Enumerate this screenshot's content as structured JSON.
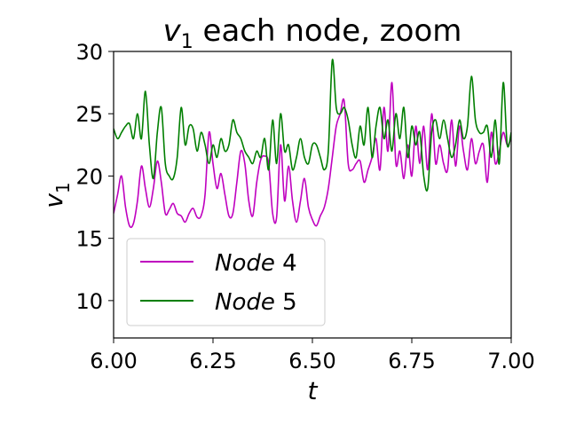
{
  "chart_data": {
    "type": "line",
    "title": {
      "var": "v",
      "sub": "1",
      "rest": " each node, zoom"
    },
    "xlabel": "t",
    "ylabel": {
      "var": "v",
      "sub": "1"
    },
    "xlim": [
      6.0,
      7.0
    ],
    "ylim": [
      7,
      30
    ],
    "xticks": [
      6.0,
      6.25,
      6.5,
      6.75,
      7.0
    ],
    "xtick_labels": [
      "6.00",
      "6.25",
      "6.50",
      "6.75",
      "7.00"
    ],
    "yticks": [
      10,
      15,
      20,
      25,
      30
    ],
    "ytick_labels": [
      "10",
      "15",
      "20",
      "25",
      "30"
    ],
    "grid": false,
    "legend_placement": "lower-left",
    "series": [
      {
        "name": "Node 4",
        "name_italic": "Node",
        "name_plain": " 4",
        "color": "#bf00bf",
        "x": [
          6.0,
          6.01,
          6.02,
          6.03,
          6.04,
          6.05,
          6.06,
          6.07,
          6.08,
          6.09,
          6.1,
          6.11,
          6.12,
          6.13,
          6.14,
          6.15,
          6.16,
          6.17,
          6.18,
          6.19,
          6.2,
          6.21,
          6.22,
          6.23,
          6.24,
          6.25,
          6.26,
          6.27,
          6.28,
          6.29,
          6.3,
          6.31,
          6.32,
          6.33,
          6.34,
          6.35,
          6.36,
          6.37,
          6.38,
          6.39,
          6.4,
          6.41,
          6.42,
          6.43,
          6.44,
          6.45,
          6.46,
          6.47,
          6.48,
          6.49,
          6.5,
          6.51,
          6.52,
          6.53,
          6.54,
          6.55,
          6.56,
          6.57,
          6.58,
          6.59,
          6.6,
          6.61,
          6.62,
          6.63,
          6.64,
          6.65,
          6.66,
          6.67,
          6.68,
          6.69,
          6.7,
          6.71,
          6.72,
          6.73,
          6.74,
          6.75,
          6.76,
          6.77,
          6.78,
          6.79,
          6.8,
          6.81,
          6.82,
          6.83,
          6.84,
          6.85,
          6.86,
          6.87,
          6.88,
          6.89,
          6.9,
          6.91,
          6.92,
          6.93,
          6.94,
          6.95,
          6.96,
          6.97,
          6.98,
          6.99,
          7.0
        ],
        "y": [
          17.0,
          18.5,
          20.0,
          17.5,
          16.0,
          16.2,
          18.0,
          20.8,
          19.0,
          17.5,
          19.0,
          21.2,
          19.5,
          17.0,
          17.3,
          17.8,
          17.0,
          16.8,
          16.3,
          17.0,
          17.4,
          16.7,
          16.8,
          18.5,
          23.5,
          21.0,
          19.0,
          20.2,
          18.5,
          16.8,
          17.0,
          19.5,
          22.0,
          21.0,
          18.0,
          16.8,
          19.5,
          21.3,
          21.6,
          21.0,
          17.0,
          16.7,
          22.5,
          18.0,
          20.8,
          18.0,
          16.3,
          18.0,
          19.8,
          17.5,
          16.5,
          16.0,
          16.8,
          17.5,
          19.0,
          21.5,
          24.0,
          25.0,
          26.0,
          21.0,
          20.5,
          21.0,
          21.2,
          19.5,
          20.5,
          21.5,
          23.0,
          20.5,
          25.5,
          22.0,
          27.5,
          21.0,
          22.0,
          19.8,
          22.5,
          20.0,
          24.0,
          21.0,
          24.0,
          20.5,
          25.0,
          21.0,
          22.5,
          21.0,
          20.5,
          24.5,
          20.8,
          24.0,
          22.0,
          20.5,
          23.0,
          21.0,
          22.0,
          22.5,
          19.5,
          23.5,
          21.0,
          22.0,
          23.5,
          22.5,
          23.0
        ]
      },
      {
        "name": "Node 5",
        "name_italic": "Node",
        "name_plain": " 5",
        "color": "#007f00",
        "x": [
          6.0,
          6.01,
          6.02,
          6.03,
          6.04,
          6.05,
          6.06,
          6.07,
          6.08,
          6.09,
          6.1,
          6.11,
          6.12,
          6.13,
          6.14,
          6.15,
          6.16,
          6.17,
          6.18,
          6.19,
          6.2,
          6.21,
          6.22,
          6.23,
          6.24,
          6.25,
          6.26,
          6.27,
          6.28,
          6.29,
          6.3,
          6.31,
          6.32,
          6.33,
          6.34,
          6.35,
          6.36,
          6.37,
          6.38,
          6.39,
          6.4,
          6.41,
          6.42,
          6.43,
          6.44,
          6.45,
          6.46,
          6.47,
          6.48,
          6.49,
          6.5,
          6.51,
          6.52,
          6.53,
          6.54,
          6.55,
          6.56,
          6.57,
          6.58,
          6.59,
          6.6,
          6.61,
          6.62,
          6.63,
          6.64,
          6.65,
          6.66,
          6.67,
          6.68,
          6.69,
          6.7,
          6.71,
          6.72,
          6.73,
          6.74,
          6.75,
          6.76,
          6.77,
          6.78,
          6.79,
          6.8,
          6.81,
          6.82,
          6.83,
          6.84,
          6.85,
          6.86,
          6.87,
          6.88,
          6.89,
          6.9,
          6.91,
          6.92,
          6.93,
          6.94,
          6.95,
          6.96,
          6.97,
          6.98,
          6.99,
          7.0
        ],
        "y": [
          23.8,
          23.0,
          23.5,
          24.0,
          24.2,
          23.0,
          25.0,
          23.0,
          26.8,
          22.5,
          19.8,
          23.5,
          25.5,
          21.0,
          20.0,
          19.8,
          21.5,
          25.5,
          22.5,
          24.0,
          23.8,
          22.0,
          23.5,
          22.5,
          21.0,
          22.5,
          21.5,
          23.0,
          22.0,
          22.5,
          24.5,
          23.5,
          23.0,
          22.0,
          21.5,
          21.0,
          22.0,
          21.5,
          23.0,
          20.5,
          24.5,
          21.0,
          25.0,
          22.0,
          22.5,
          20.5,
          21.5,
          23.0,
          21.5,
          21.0,
          22.5,
          22.5,
          21.5,
          20.5,
          22.0,
          29.3,
          25.5,
          25.0,
          25.5,
          24.5,
          22.5,
          21.5,
          24.0,
          22.5,
          25.5,
          21.5,
          24.0,
          25.5,
          23.0,
          24.5,
          22.0,
          25.0,
          23.0,
          25.5,
          21.5,
          24.0,
          22.5,
          23.5,
          20.0,
          19.0,
          23.5,
          24.5,
          23.0,
          24.5,
          23.0,
          21.5,
          22.5,
          24.5,
          23.0,
          24.0,
          28.0,
          24.5,
          23.5,
          23.5,
          24.0,
          21.5,
          24.5,
          21.0,
          27.5,
          22.5,
          23.5
        ]
      }
    ]
  }
}
